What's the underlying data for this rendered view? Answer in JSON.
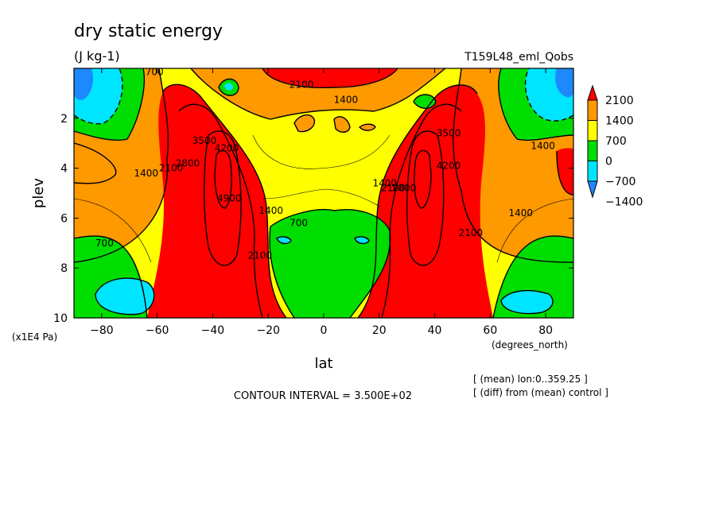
{
  "figure": {
    "title": "dry static energy",
    "units": "(J kg-1)",
    "run_label": "T159L48_eml_Qobs",
    "contour_interval": "CONTOUR INTERVAL = 3.500E+02",
    "notes": [
      "[ (mean) lon:0..359.25 ]",
      "[ (diff) from (mean) control ]"
    ]
  },
  "chart_data": {
    "type": "contour",
    "title": "dry static energy",
    "subtitle": "(J kg-1)",
    "xlabel": "lat",
    "xunits": "(degrees_north)",
    "ylabel": "plev",
    "yunits": "(x1E4 Pa)",
    "xlim": [
      -90,
      90
    ],
    "ylim": [
      10,
      0
    ],
    "xticks": [
      -80,
      -60,
      -40,
      -20,
      0,
      20,
      40,
      60,
      80
    ],
    "yticks": [
      2,
      4,
      6,
      8,
      10
    ],
    "contour_interval": 350,
    "colorbar": {
      "levels": [
        -1400,
        -700,
        0,
        700,
        1400,
        2100
      ],
      "colors": [
        "#1e88ff",
        "#00e5ff",
        "#00dd00",
        "#ffff00",
        "#ff9900",
        "#ff0000"
      ]
    },
    "contour_labels": [
      {
        "text": "700",
        "lat": -61,
        "plev": 0.15
      },
      {
        "text": "2100",
        "lat": -8,
        "plev": 0.65
      },
      {
        "text": "1400",
        "lat": 8,
        "plev": 1.25
      },
      {
        "text": "1400",
        "lat": -64,
        "plev": 4.2
      },
      {
        "text": "2100",
        "lat": -55,
        "plev": 4.0
      },
      {
        "text": "2800",
        "lat": -49,
        "plev": 3.8
      },
      {
        "text": "3500",
        "lat": -43,
        "plev": 2.9
      },
      {
        "text": "4200",
        "lat": -35,
        "plev": 3.2
      },
      {
        "text": "4900",
        "lat": -34,
        "plev": 5.2
      },
      {
        "text": "1400",
        "lat": -19,
        "plev": 5.7
      },
      {
        "text": "2100",
        "lat": -23,
        "plev": 7.5
      },
      {
        "text": "700",
        "lat": -9,
        "plev": 6.2
      },
      {
        "text": "700",
        "lat": -79,
        "plev": 7.0
      },
      {
        "text": "1400",
        "lat": 22,
        "plev": 4.6
      },
      {
        "text": "2100",
        "lat": 25,
        "plev": 4.8
      },
      {
        "text": "2800",
        "lat": 29,
        "plev": 4.8
      },
      {
        "text": "3500",
        "lat": 45,
        "plev": 2.6
      },
      {
        "text": "4200",
        "lat": 45,
        "plev": 3.9
      },
      {
        "text": "2100",
        "lat": 53,
        "plev": 6.6
      },
      {
        "text": "1400",
        "lat": 79,
        "plev": 3.1
      },
      {
        "text": "1400",
        "lat": 71,
        "plev": 5.8
      }
    ]
  }
}
